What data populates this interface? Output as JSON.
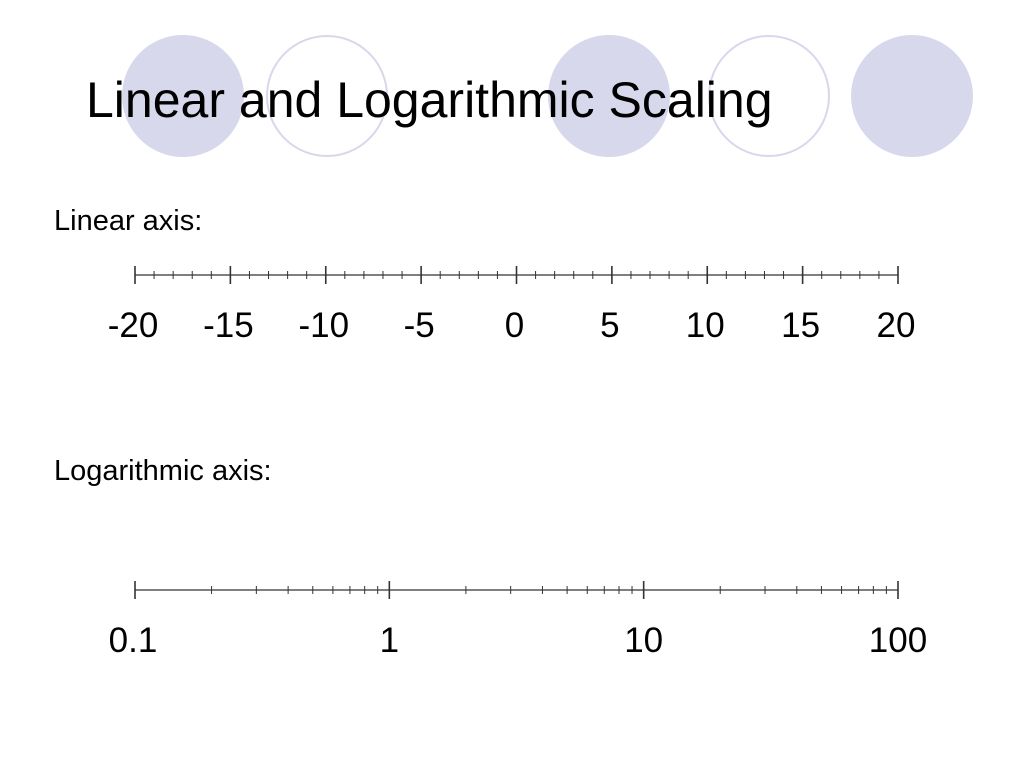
{
  "title": "Linear and Logarithmic Scaling",
  "colors": {
    "decoration": "#d8d8ec",
    "axis": "#333333",
    "text": "#000000"
  },
  "linear_axis": {
    "caption": "Linear axis:",
    "scale": "linear",
    "range": [
      -20,
      20
    ],
    "major_step": 5,
    "minor_step": 1,
    "tick_labels": [
      "-20",
      "-15",
      "-10",
      "-5",
      "0",
      "5",
      "10",
      "15",
      "20"
    ]
  },
  "log_axis": {
    "caption": "Logarithmic axis:",
    "scale": "log",
    "range": [
      0.1,
      100
    ],
    "major_ticks": [
      0.1,
      1,
      10,
      100
    ],
    "minor_ticks": "2–9 × each decade",
    "tick_labels": [
      "0.1",
      "1",
      "10",
      "100"
    ]
  }
}
